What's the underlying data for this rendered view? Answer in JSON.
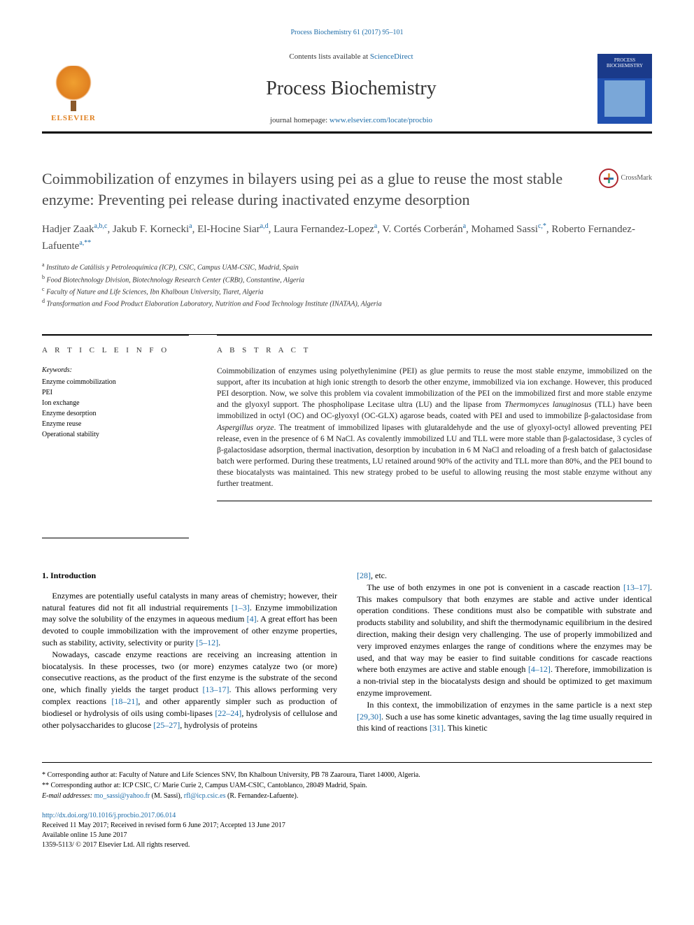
{
  "top_ref": "Process Biochemistry 61 (2017) 95–101",
  "header": {
    "contents_prefix": "Contents lists available at ",
    "contents_link": "ScienceDirect",
    "journal_name": "Process Biochemistry",
    "homepage_prefix": "journal homepage: ",
    "homepage_link": "www.elsevier.com/locate/procbio",
    "publisher_name": "ELSEVIER",
    "cover_title": "PROCESS BIOCHEMISTRY"
  },
  "article": {
    "title": "Coimmobilization of enzymes in bilayers using pei as a glue to reuse the most stable enzyme: Preventing pei release during inactivated enzyme desorption",
    "crossmark_label": "CrossMark",
    "authors_html": "Hadjer Zaak<sup>a,b,c</sup>, Jakub F. Kornecki<sup>a</sup>, El-Hocine Siar<sup>a,d</sup>, Laura Fernandez-Lopez<sup>a</sup>, V. Cortés Corberán<sup>a</sup>, Mohamed Sassi<sup>c,*</sup>, Roberto Fernandez-Lafuente<sup>a,**</sup>",
    "affiliations": [
      {
        "sup": "a",
        "text": "Instituto de Catálisis y Petroleoquímica (ICP), CSIC, Campus UAM-CSIC, Madrid, Spain"
      },
      {
        "sup": "b",
        "text": "Food Biotechnology Division, Biotechnology Research Center (CRBt), Constantine, Algeria"
      },
      {
        "sup": "c",
        "text": "Faculty of Nature and Life Sciences, Ibn Khalboun University, Tiaret, Algeria"
      },
      {
        "sup": "d",
        "text": "Transformation and Food Product Elaboration Laboratory, Nutrition and Food Technology Institute (INATAA), Algeria"
      }
    ]
  },
  "article_info": {
    "heading": "A R T I C L E  I N F O",
    "keywords_label": "Keywords:",
    "keywords": [
      "Enzyme coimmobilization",
      "PEI",
      "Ion exchange",
      "Enzyme desorption",
      "Enzyme reuse",
      "Operational stability"
    ]
  },
  "abstract": {
    "heading": "A B S T R A C T",
    "text": "Coimmobilization of enzymes using polyethylenimine (PEI) as glue permits to reuse the most stable enzyme, immobilized on the support, after its incubation at high ionic strength to desorb the other enzyme, immobilized via ion exchange. However, this produced PEI desorption. Now, we solve this problem via covalent immobilization of the PEI on the immobilized first and more stable enzyme and the glyoxyl support. The phospholipase Lecitase ultra (LU) and the lipase from Thermomyces lanuginosus (TLL) have been immobilized in octyl (OC) and OC-glyoxyl (OC-GLX) agarose beads, coated with PEI and used to immobilize β-galactosidase from Aspergillus oryze. The treatment of immobilized lipases with glutaraldehyde and the use of glyoxyl-octyl allowed preventing PEI release, even in the presence of 6 M NaCl. As covalently immobilized LU and TLL were more stable than β-galactosidase, 3 cycles of β-galactosidase adsorption, thermal inactivation, desorption by incubation in 6 M NaCl and reloading of a fresh batch of galactosidase batch were performed. During these treatments, LU retained around 90% of the activity and TLL more than 80%, and the PEI bound to these biocatalysts was maintained. This new strategy probed to be useful to allowing reusing the most stable enzyme without any further treatment."
  },
  "body": {
    "section_number": "1.",
    "section_title": "Introduction",
    "col1_paras": [
      "Enzymes are potentially useful catalysts in many areas of chemistry; however, their natural features did not fit all industrial requirements [1–3]. Enzyme immobilization may solve the solubility of the enzymes in aqueous medium [4]. A great effort has been devoted to couple immobilization with the improvement of other enzyme properties, such as stability, activity, selectivity or purity [5–12].",
      "Nowadays, cascade enzyme reactions are receiving an increasing attention in biocatalysis. In these processes, two (or more) enzymes catalyze two (or more) consecutive reactions, as the product of the first enzyme is the substrate of the second one, which finally yields the target product [13–17]. This allows performing very complex reactions [18–21], and other apparently simpler such as production of biodiesel or hydrolysis of oils using combi-lipases [22–24], hydrolysis of cellulose and other polysaccharides to glucose [25–27], hydrolysis of proteins"
    ],
    "col2_paras": [
      "[28], etc.",
      "The use of both enzymes in one pot is convenient in a cascade reaction [13–17]. This makes compulsory that both enzymes are stable and active under identical operation conditions. These conditions must also be compatible with substrate and products stability and solubility, and shift the thermodynamic equilibrium in the desired direction, making their design very challenging. The use of properly immobilized and very improved enzymes enlarges the range of conditions where the enzymes may be used, and that way may be easier to find suitable conditions for cascade reactions where both enzymes are active and stable enough [4–12]. Therefore, immobilization is a non-trivial step in the biocatalysts design and should be optimized to get maximum enzyme improvement.",
      "In this context, the immobilization of enzymes in the same particle is a next step [29,30]. Such a use has some kinetic advantages, saving the lag time usually required in this kind of reactions [31]. This kinetic"
    ]
  },
  "footer": {
    "corr1": "* Corresponding author at: Faculty of Nature and Life Sciences SNV, Ibn Khalboun University, PB 78 Zaaroura, Tiaret 14000, Algeria.",
    "corr2": "** Corresponding author at: ICP CSIC, C/ Marie Curie 2, Campus UAM-CSIC, Cantoblanco, 28049 Madrid, Spain.",
    "email_label": "E-mail addresses: ",
    "email1": "mo_sassi@yahoo.fr",
    "email1_paren": " (M. Sassi), ",
    "email2": "rfl@icp.csic.es",
    "email2_paren": " (R. Fernandez-Lafuente).",
    "doi": "http://dx.doi.org/10.1016/j.procbio.2017.06.014",
    "received": "Received 11 May 2017; Received in revised form 6 June 2017; Accepted 13 June 2017",
    "available": "Available online 15 June 2017",
    "issn": "1359-5113/ © 2017 Elsevier Ltd. All rights reserved."
  },
  "colors": {
    "link": "#1b6ba8",
    "text": "#000000",
    "muted": "#4a4a4a",
    "elsevier_orange": "#e08020",
    "crossmark_red": "#b0282f"
  },
  "typography": {
    "body_pt": 12,
    "title_pt": 22,
    "journal_name_pt": 28,
    "abstract_pt": 11.5,
    "footer_pt": 10,
    "affiliation_pt": 10
  }
}
